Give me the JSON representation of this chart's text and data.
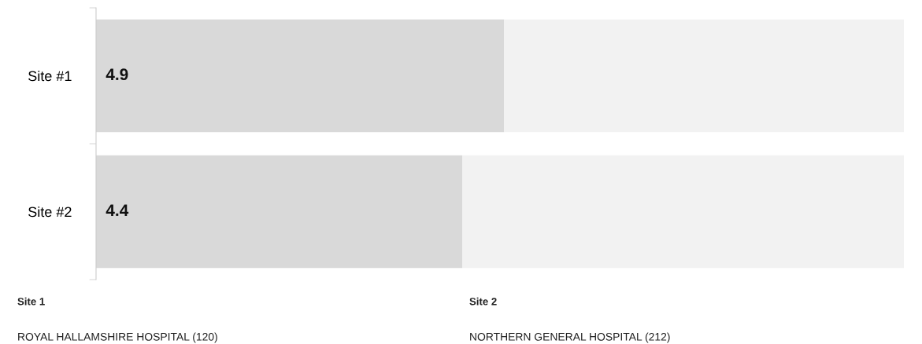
{
  "chart_data": {
    "type": "bar",
    "orientation": "horizontal",
    "stacked": true,
    "categories": [
      "Site #1",
      "Site #2"
    ],
    "series": [
      {
        "color": "#d9d9d9",
        "values": [
          4.9,
          4.4
        ],
        "value_labels": [
          "4.9",
          "4.4"
        ]
      },
      {
        "color": "#f2f2f2",
        "values": [
          4.8,
          5.3
        ]
      }
    ],
    "annotations": [
      "Site 1",
      "Site 2",
      "ROYAL HALLAMSHIRE HOSPITAL (120)",
      "NORTHERN GENERAL HOSPITAL (212)"
    ],
    "grid": false
  }
}
